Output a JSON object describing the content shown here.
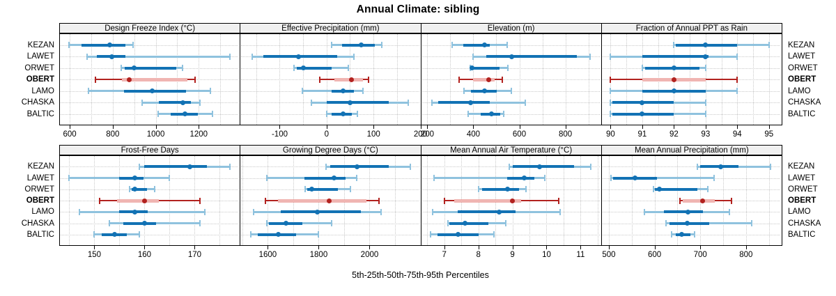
{
  "title": "Annual Climate: sibling",
  "caption": "5th-25th-50th-75th-95th Percentiles",
  "stations": [
    "KEZAN",
    "LAWET",
    "ORWET",
    "OBERT",
    "LAMO",
    "CHASKA",
    "BALTIC"
  ],
  "highlight_station": "OBERT",
  "percentile_labels": [
    "5th",
    "25th",
    "50th",
    "75th",
    "95th"
  ],
  "colors": {
    "series_dark": "#1272b4",
    "series_light": "#8fc2de",
    "highlight_dark": "#b2221f",
    "highlight_light": "#f0b5b2",
    "grid": "#c9c9c9",
    "header_bg": "#f0f0f0",
    "border": "#000000"
  },
  "chart_data": [
    {
      "type": "percentile-interval",
      "title": "Design Freeze Index (°C)",
      "xlim": [
        551,
        1391
      ],
      "grid_step": 100,
      "ticks": [
        600,
        800,
        1000,
        1200
      ],
      "series": [
        {
          "name": "KEZAN",
          "values": [
            595,
            655,
            785,
            860,
            895
          ]
        },
        {
          "name": "LAWET",
          "values": [
            680,
            725,
            795,
            860,
            1345
          ]
        },
        {
          "name": "ORWET",
          "values": [
            838,
            855,
            900,
            1095,
            1125
          ]
        },
        {
          "name": "OBERT",
          "values": [
            720,
            842,
            876,
            1148,
            1183
          ]
        },
        {
          "name": "LAMO",
          "values": [
            687,
            853,
            984,
            1141,
            1254
          ]
        },
        {
          "name": "CHASKA",
          "values": [
            935,
            1015,
            1125,
            1165,
            1205
          ]
        },
        {
          "name": "BALTIC",
          "values": [
            1010,
            1070,
            1135,
            1195,
            1265
          ]
        }
      ]
    },
    {
      "type": "percentile-interval",
      "title": "Effective Precipitation (mm)",
      "xlim": [
        -185,
        200
      ],
      "grid_step": 50,
      "ticks": [
        -100,
        0,
        100,
        200
      ],
      "series": [
        {
          "name": "KEZAN",
          "values": [
            10,
            33,
            74,
            103,
            118
          ]
        },
        {
          "name": "LAWET",
          "values": [
            -158,
            -135,
            -60,
            22,
            58
          ]
        },
        {
          "name": "ORWET",
          "values": [
            -70,
            -63,
            -50,
            10,
            46
          ]
        },
        {
          "name": "OBERT",
          "values": [
            -15,
            17,
            53,
            77,
            90
          ]
        },
        {
          "name": "LAMO",
          "values": [
            -51,
            10,
            35,
            58,
            78
          ]
        },
        {
          "name": "CHASKA",
          "values": [
            -32,
            0,
            50,
            133,
            174
          ]
        },
        {
          "name": "BALTIC",
          "values": [
            0,
            10,
            35,
            53,
            65
          ]
        }
      ]
    },
    {
      "type": "percentile-interval",
      "title": "Elevation (m)",
      "xlim": [
        170,
        955
      ],
      "grid_step": 100,
      "ticks": [
        200,
        400,
        600,
        800
      ],
      "series": [
        {
          "name": "KEZAN",
          "values": [
            307,
            355,
            449,
            471,
            547
          ]
        },
        {
          "name": "LAWET",
          "values": [
            400,
            456,
            567,
            850,
            906
          ]
        },
        {
          "name": "ORWET",
          "values": [
            386,
            390,
            395,
            513,
            550
          ]
        },
        {
          "name": "OBERT",
          "values": [
            337,
            400,
            468,
            494,
            525
          ]
        },
        {
          "name": "LAMO",
          "values": [
            358,
            390,
            448,
            501,
            565
          ]
        },
        {
          "name": "CHASKA",
          "values": [
            220,
            246,
            388,
            471,
            626
          ]
        },
        {
          "name": "BALTIC",
          "values": [
            378,
            431,
            479,
            517,
            532
          ]
        }
      ]
    },
    {
      "type": "percentile-interval",
      "title": "Fraction of Annual PPT as Rain",
      "xlim": [
        89.7,
        95.4
      ],
      "grid_step": 0.5,
      "ticks": [
        90,
        91,
        92,
        93,
        94,
        95
      ],
      "series": [
        {
          "name": "KEZAN",
          "values": [
            92,
            92.05,
            93,
            94,
            95
          ]
        },
        {
          "name": "LAWET",
          "values": [
            90,
            91,
            93,
            93.1,
            94
          ]
        },
        {
          "name": "ORWET",
          "values": [
            91,
            91.1,
            92,
            92.8,
            93
          ]
        },
        {
          "name": "OBERT",
          "values": [
            90,
            91,
            92,
            93,
            94
          ]
        },
        {
          "name": "LAMO",
          "values": [
            90,
            91,
            92,
            93,
            94
          ]
        },
        {
          "name": "CHASKA",
          "values": [
            90,
            90.05,
            91,
            92,
            93
          ]
        },
        {
          "name": "BALTIC",
          "values": [
            90,
            90.05,
            91,
            92,
            93
          ]
        }
      ]
    },
    {
      "type": "percentile-interval",
      "title": "Frost-Free Days",
      "xlim": [
        143,
        179
      ],
      "grid_step": 5,
      "ticks": [
        150,
        160,
        170
      ],
      "series": [
        {
          "name": "KEZAN",
          "values": [
            159,
            160,
            169,
            172.5,
            177
          ]
        },
        {
          "name": "LAWET",
          "values": [
            145,
            155,
            158,
            159.8,
            165
          ]
        },
        {
          "name": "ORWET",
          "values": [
            157,
            157.5,
            158,
            160.5,
            162
          ]
        },
        {
          "name": "OBERT",
          "values": [
            151,
            154.5,
            160,
            162.8,
            171
          ]
        },
        {
          "name": "LAMO",
          "values": [
            147,
            155,
            158,
            160.7,
            172
          ]
        },
        {
          "name": "CHASKA",
          "values": [
            153,
            155.8,
            160,
            162.3,
            171
          ]
        },
        {
          "name": "BALTIC",
          "values": [
            150,
            151.5,
            154,
            156.5,
            159
          ]
        }
      ]
    },
    {
      "type": "percentile-interval",
      "title": "Growing Degree Days (°C)",
      "xlim": [
        1490,
        2200
      ],
      "grid_step": 100,
      "ticks": [
        1600,
        1800,
        2000
      ],
      "series": [
        {
          "name": "KEZAN",
          "values": [
            1830,
            1845,
            1950,
            2075,
            2160
          ]
        },
        {
          "name": "LAWET",
          "values": [
            1595,
            1745,
            1860,
            1905,
            1950
          ]
        },
        {
          "name": "ORWET",
          "values": [
            1748,
            1755,
            1772,
            1875,
            1925
          ]
        },
        {
          "name": "OBERT",
          "values": [
            1590,
            1641,
            1842,
            1988,
            2036
          ]
        },
        {
          "name": "LAMO",
          "values": [
            1545,
            1650,
            1795,
            1965,
            2045
          ]
        },
        {
          "name": "CHASKA",
          "values": [
            1597,
            1605,
            1672,
            1735,
            1850
          ]
        },
        {
          "name": "BALTIC",
          "values": [
            1533,
            1560,
            1640,
            1710,
            1800
          ]
        }
      ]
    },
    {
      "type": "percentile-interval",
      "title": "Mean Annual Air Temperature (°C)",
      "xlim": [
        6.3,
        11.6
      ],
      "grid_step": 0.5,
      "ticks": [
        7,
        8,
        9,
        10,
        11
      ],
      "series": [
        {
          "name": "KEZAN",
          "values": [
            8.9,
            9.0,
            9.8,
            10.8,
            11.3
          ]
        },
        {
          "name": "LAWET",
          "values": [
            6.7,
            8.85,
            9.35,
            9.65,
            9.95
          ]
        },
        {
          "name": "ORWET",
          "values": [
            8.0,
            8.1,
            8.85,
            9.2,
            9.4
          ]
        },
        {
          "name": "OBERT",
          "values": [
            7.0,
            7.3,
            9.0,
            9.25,
            10.35
          ]
        },
        {
          "name": "LAMO",
          "values": [
            6.65,
            7.4,
            8.6,
            9.1,
            10.4
          ]
        },
        {
          "name": "CHASKA",
          "values": [
            7.1,
            7.15,
            7.6,
            8.3,
            8.8
          ]
        },
        {
          "name": "BALTIC",
          "values": [
            6.6,
            6.8,
            7.4,
            8.0,
            8.45
          ]
        }
      ]
    },
    {
      "type": "percentile-interval",
      "title": "Mean Annual Precipitation (mm)",
      "xlim": [
        483,
        878
      ],
      "grid_step": 50,
      "ticks": [
        500,
        600,
        700,
        800
      ],
      "series": [
        {
          "name": "KEZAN",
          "values": [
            693,
            700,
            744,
            783,
            853
          ]
        },
        {
          "name": "LAWET",
          "values": [
            505,
            510,
            557,
            605,
            730
          ]
        },
        {
          "name": "ORWET",
          "values": [
            597,
            601,
            610,
            694,
            717
          ]
        },
        {
          "name": "OBERT",
          "values": [
            655,
            662,
            705,
            732,
            769
          ]
        },
        {
          "name": "LAMO",
          "values": [
            578,
            620,
            673,
            706,
            764
          ]
        },
        {
          "name": "CHASKA",
          "values": [
            625,
            632,
            672,
            719,
            813
          ]
        },
        {
          "name": "BALTIC",
          "values": [
            637,
            646,
            660,
            679,
            688
          ]
        }
      ]
    }
  ]
}
